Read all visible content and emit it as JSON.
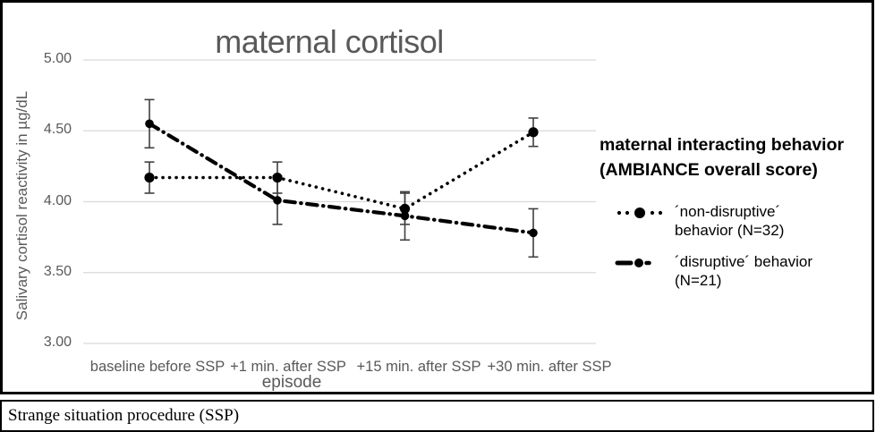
{
  "chart_data": {
    "type": "line",
    "title": "maternal cortisol",
    "xlabel": "episode",
    "ylabel": "Salivary cortisol reactivity in µg/dL",
    "ylim": [
      3.0,
      5.0
    ],
    "yticks": [
      5.0,
      4.5,
      4.0,
      3.5,
      3.0
    ],
    "ytick_labels": [
      "5.00",
      "4.50",
      "4.00",
      "3.50",
      "3.00"
    ],
    "categories": [
      "baseline before SSP",
      "+1 min. after SSP",
      "+15 min. after SSP",
      "+30 min. after SSP"
    ],
    "grid": true,
    "legend_position": "right",
    "legend_title": "maternal interacting behavior (AMBIANCE overall score)",
    "series": [
      {
        "name": "´non-disruptive´ behavior (N=32)",
        "style": "dotted",
        "marker": "circle",
        "values": [
          4.17,
          4.17,
          3.95,
          4.49
        ],
        "errors": [
          0.11,
          0.11,
          0.11,
          0.1
        ]
      },
      {
        "name": "´disruptive´ behavior (N=21)",
        "style": "dash-dot",
        "marker": "circle",
        "values": [
          4.55,
          4.01,
          3.9,
          3.78
        ],
        "errors": [
          0.17,
          0.17,
          0.17,
          0.17
        ]
      }
    ]
  },
  "legend": {
    "title_lines": [
      "maternal interacting behavior",
      "(AMBIANCE overall score)"
    ]
  },
  "caption": "Strange situation procedure (SSP)",
  "colors": {
    "series": "#000000",
    "gridline": "#d9d9d9",
    "error_bar": "#404040",
    "text_gray": "#595959",
    "border": "#000000",
    "background": "#ffffff"
  }
}
